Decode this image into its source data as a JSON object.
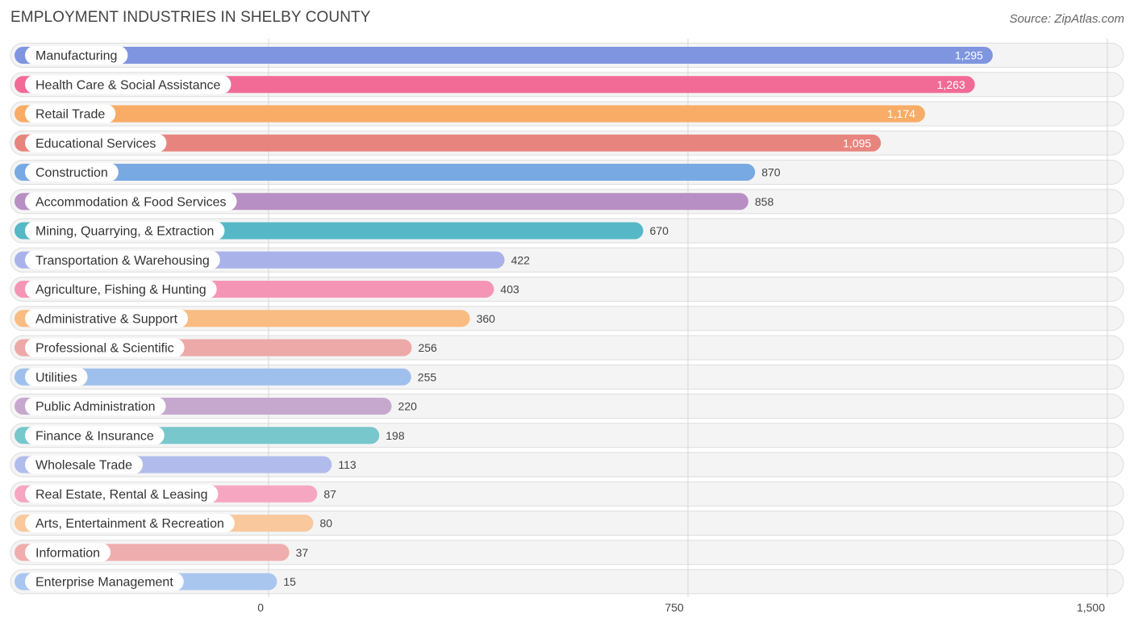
{
  "chart_data": {
    "type": "bar",
    "orientation": "horizontal",
    "title": "EMPLOYMENT INDUSTRIES IN SHELBY COUNTY",
    "source": "Source: ZipAtlas.com",
    "xlabel": "",
    "ylabel": "",
    "xlim": [
      0,
      1500
    ],
    "ticks": [
      0,
      750,
      1500
    ],
    "tick_labels": [
      "0",
      "750",
      "1,500"
    ],
    "categories": [
      "Manufacturing",
      "Health Care & Social Assistance",
      "Retail Trade",
      "Educational Services",
      "Construction",
      "Accommodation & Food Services",
      "Mining, Quarrying, & Extraction",
      "Transportation & Warehousing",
      "Agriculture, Fishing & Hunting",
      "Administrative & Support",
      "Professional & Scientific",
      "Utilities",
      "Public Administration",
      "Finance & Insurance",
      "Wholesale Trade",
      "Real Estate, Rental & Leasing",
      "Arts, Entertainment & Recreation",
      "Information",
      "Enterprise Management"
    ],
    "values": [
      1295,
      1263,
      1174,
      1095,
      870,
      858,
      670,
      422,
      403,
      360,
      256,
      255,
      220,
      198,
      113,
      87,
      80,
      37,
      15
    ],
    "value_labels": [
      "1,295",
      "1,263",
      "1,174",
      "1,095",
      "870",
      "858",
      "670",
      "422",
      "403",
      "360",
      "256",
      "255",
      "220",
      "198",
      "113",
      "87",
      "80",
      "37",
      "15"
    ],
    "colors": [
      "#7f95e0",
      "#f26b97",
      "#f9ac66",
      "#e8847e",
      "#78a9e3",
      "#b88fc4",
      "#56b8c6",
      "#a9b3ea",
      "#f595b6",
      "#f9bc82",
      "#eca9a7",
      "#9fc0ec",
      "#c6a8cf",
      "#77c7cc",
      "#b1bcec",
      "#f6a6c0",
      "#f9c89c",
      "#f0adad",
      "#a9c6ee"
    ],
    "grid": true,
    "legend": "none"
  }
}
